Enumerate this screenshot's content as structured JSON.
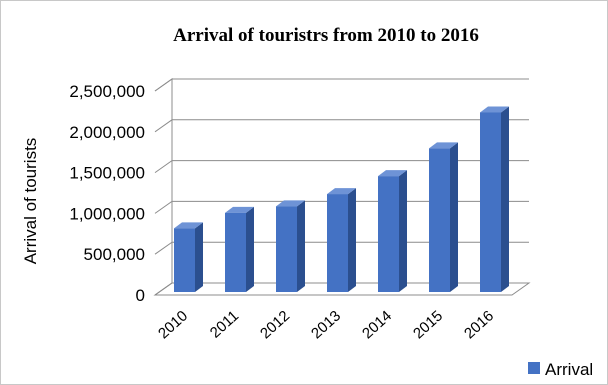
{
  "chart_data": {
    "type": "bar",
    "title": "Arrival of touristrs from 2010 to 2016",
    "ylabel": "Arrival of tourists",
    "xlabel": "",
    "categories": [
      "2010",
      "2011",
      "2012",
      "2013",
      "2014",
      "2015",
      "2016"
    ],
    "series": [
      {
        "name": "Arrival",
        "values": [
          780000,
          970000,
          1050000,
          1200000,
          1420000,
          1760000,
          2200000
        ],
        "color": "#4472C4"
      }
    ],
    "ylim": [
      0,
      2500000
    ],
    "yticks": [
      "0",
      "500,000",
      "1,000,000",
      "1,500,000",
      "2,000,000",
      "2,500,000"
    ],
    "grid": true,
    "legend": "bottom-right",
    "style": "3d-column"
  }
}
